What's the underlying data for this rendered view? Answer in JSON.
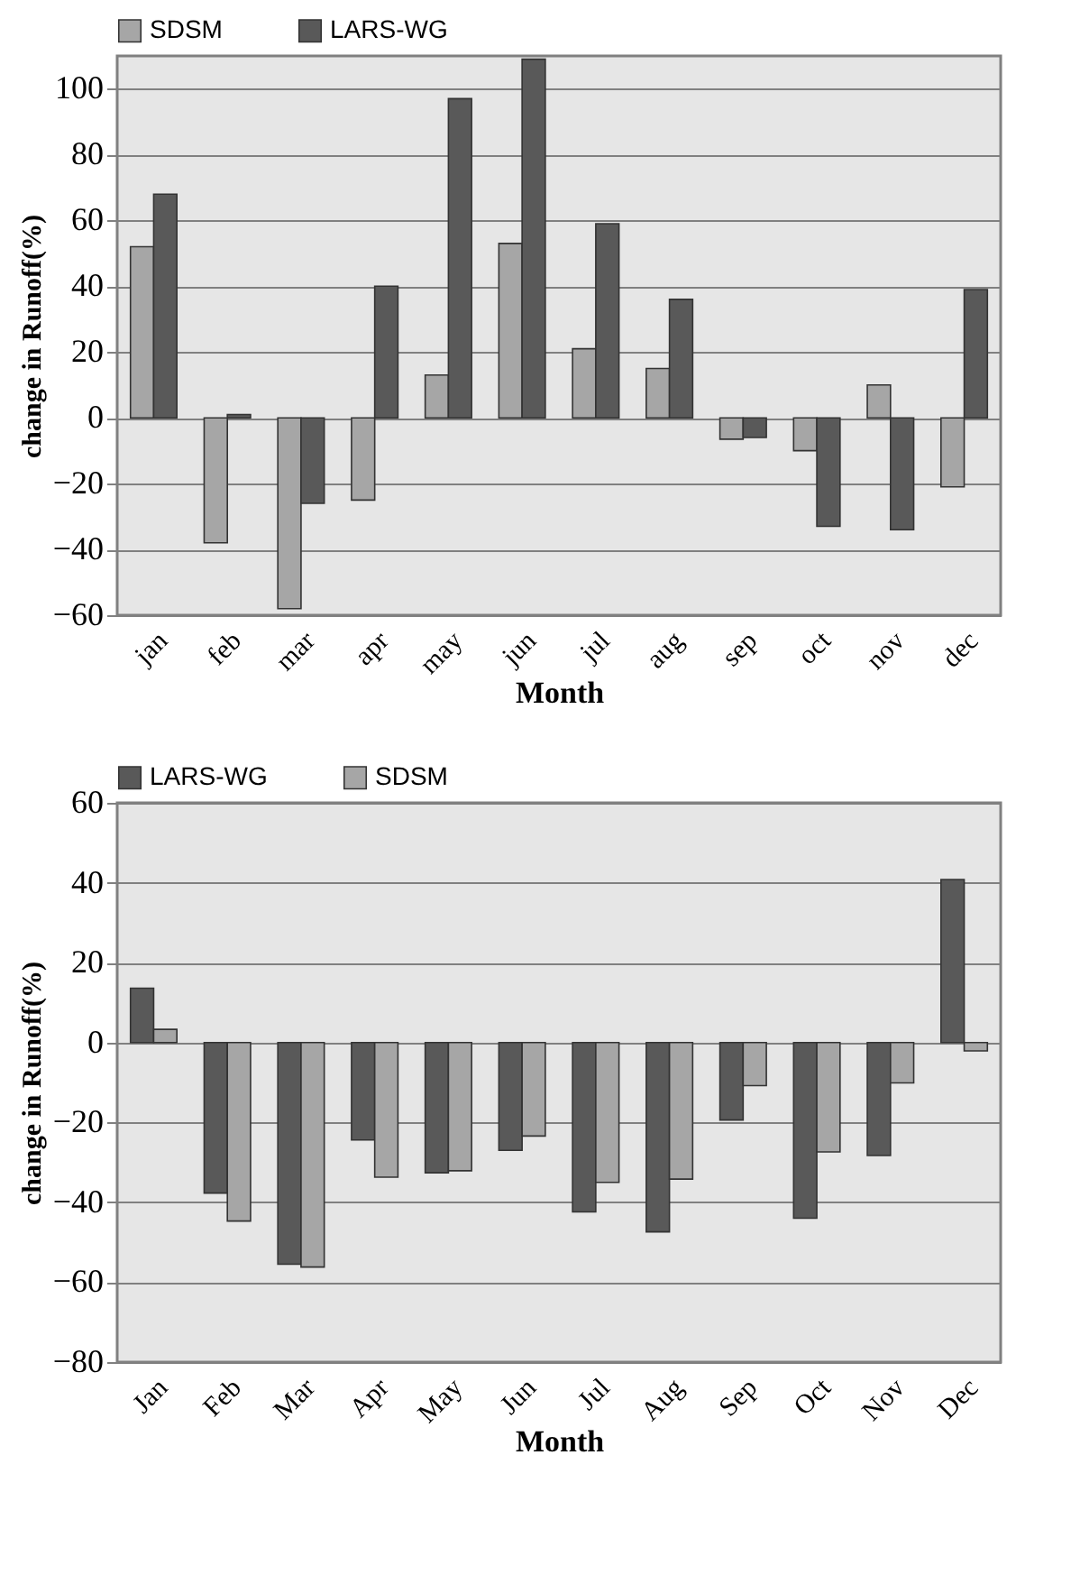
{
  "chart_data": [
    {
      "type": "bar",
      "xlabel": "Month",
      "ylabel": "change in Runoff(%)",
      "categories": [
        "jan",
        "feb",
        "mar",
        "apr",
        "may",
        "jun",
        "jul",
        "aug",
        "sep",
        "oct",
        "nov",
        "dec"
      ],
      "series": [
        {
          "name": "SDSM",
          "color": "#a6a6a6",
          "values": [
            52,
            -38,
            -58,
            -25,
            13,
            53,
            21,
            15,
            -6.5,
            -10,
            10,
            -21
          ]
        },
        {
          "name": "LARS-WG",
          "color": "#595959",
          "values": [
            68,
            1,
            -26,
            40,
            97,
            109,
            59,
            36,
            -6,
            -33,
            -34,
            39
          ]
        }
      ],
      "ylim": [
        -60,
        110
      ],
      "yticks": [
        -60,
        -40,
        -20,
        0,
        20,
        40,
        60,
        80,
        100
      ],
      "grid": "y",
      "legend": "top"
    },
    {
      "type": "bar",
      "xlabel": "Month",
      "ylabel": "change in Runoff(%)",
      "categories": [
        "Jan",
        "Feb",
        "Mar",
        "Apr",
        "May",
        "Jun",
        "Jul",
        "Aug",
        "Sep",
        "Oct",
        "Nov",
        "Dec"
      ],
      "series": [
        {
          "name": "LARS-WG",
          "color": "#595959",
          "values": [
            13.6,
            -37.7,
            -55.5,
            -24.4,
            -32.6,
            -27,
            -42.4,
            -47.4,
            -19.4,
            -44,
            -28.3,
            40.8
          ]
        },
        {
          "name": "SDSM",
          "color": "#a6a6a6",
          "values": [
            3.3,
            -44.7,
            -56.2,
            -33.7,
            -32.1,
            -23.4,
            -35,
            -34.2,
            -10.8,
            -27.4,
            -10.1,
            -2.1
          ]
        }
      ],
      "ylim": [
        -80,
        60
      ],
      "yticks": [
        -80,
        -60,
        -40,
        -20,
        0,
        20,
        40,
        60
      ],
      "grid": "y",
      "legend": "top"
    }
  ]
}
